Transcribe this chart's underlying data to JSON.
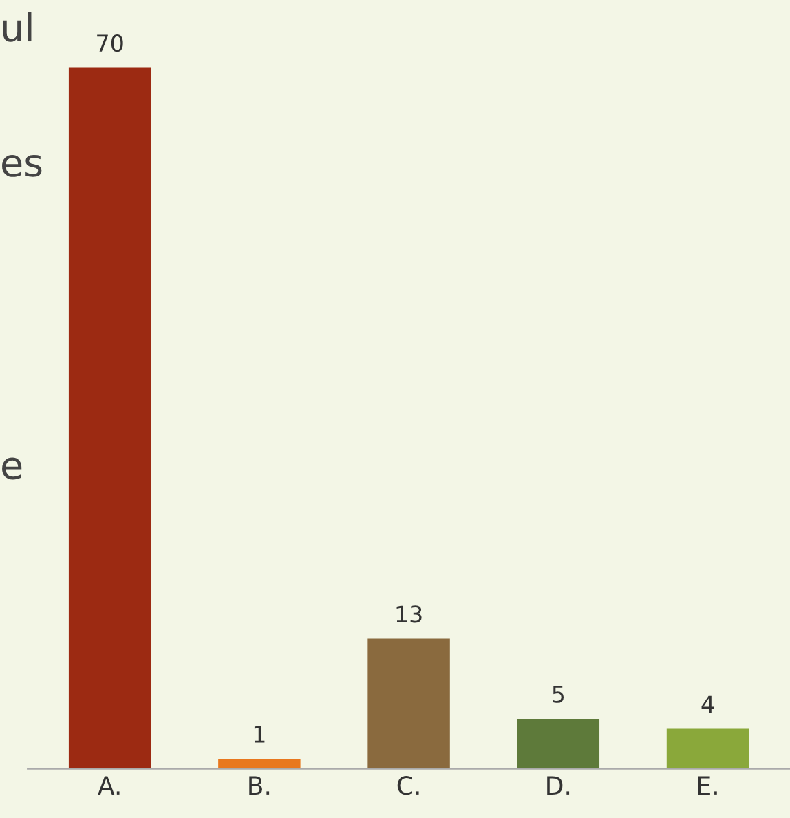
{
  "chart_data": {
    "type": "bar",
    "categories": [
      "A.",
      "B.",
      "C.",
      "D.",
      "E."
    ],
    "values": [
      70,
      1,
      13,
      5,
      4
    ],
    "colors": [
      "#9c2a12",
      "#e8781e",
      "#8a6a3e",
      "#5e7a3a",
      "#8aa83a"
    ],
    "data_labels": true,
    "grid": false,
    "legend": false,
    "tick_labels": "x",
    "annotations": [
      "ul",
      "es",
      "e"
    ]
  }
}
